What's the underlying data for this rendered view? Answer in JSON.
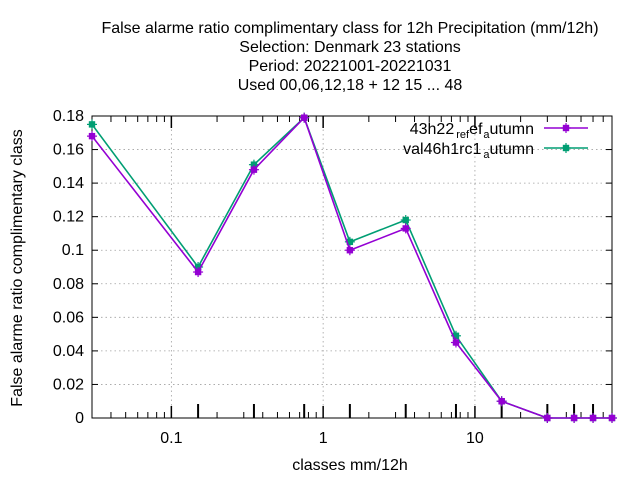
{
  "chart_data": {
    "type": "line",
    "title_lines": [
      "False alarme ratio complimentary class  for 12h Precipitation (mm/12h)",
      "Selection: Denmark     23 stations",
      "Period: 20221001-20221031",
      "Used  00,06,12,18  + 12 15 ... 48"
    ],
    "xlabel": "classes mm/12h",
    "ylabel": "False alarme ratio complimentary class",
    "x_scale": "log",
    "xlim": [
      0.03,
      80
    ],
    "ylim": [
      0,
      0.18
    ],
    "x_ticks": [
      0.1,
      1,
      10
    ],
    "x_tick_labels": [
      "0.1",
      "1",
      "10"
    ],
    "y_ticks": [
      0,
      0.02,
      0.04,
      0.06,
      0.08,
      0.1,
      0.12,
      0.14,
      0.16,
      0.18
    ],
    "y_tick_labels": [
      "0",
      "0.02",
      "0.04",
      "0.06",
      "0.08",
      "0.1",
      "0.12",
      "0.14",
      "0.16",
      "0.18"
    ],
    "grid": true,
    "legend_position": "top-right",
    "x": [
      0.03,
      0.15,
      0.35,
      0.75,
      1.5,
      3.5,
      7.5,
      15,
      30,
      45,
      60,
      80
    ],
    "series": [
      {
        "name": "43h22_ref_autumn",
        "legend_main": "43h22",
        "legend_sub": "ref",
        "legend_sub2": "a",
        "legend_tail": "utumn",
        "color": "#9400d3",
        "values": [
          0.168,
          0.087,
          0.148,
          0.179,
          0.1,
          0.113,
          0.045,
          0.01,
          0.0,
          0.0,
          0.0,
          0.0
        ]
      },
      {
        "name": "val46h1rc1_autumn",
        "legend_main": "val46h1rc1",
        "legend_sub": "",
        "legend_sub2": "a",
        "legend_tail": "utumn",
        "color": "#009e73",
        "values": [
          0.175,
          0.09,
          0.151,
          0.179,
          0.105,
          0.118,
          0.049,
          0.01,
          0.0,
          0.0,
          0.0,
          0.0
        ]
      }
    ]
  }
}
